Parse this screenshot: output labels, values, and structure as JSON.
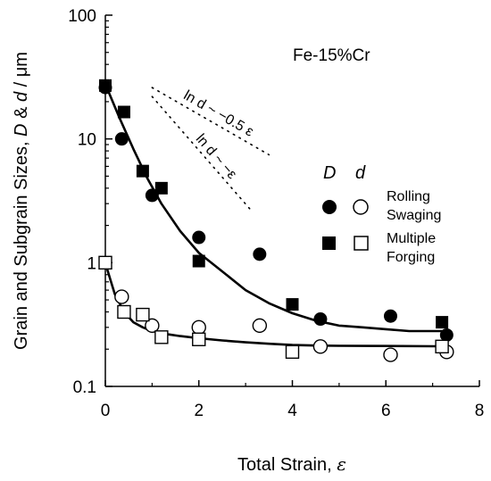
{
  "chart_data": {
    "type": "scatter",
    "yscale": "log",
    "xlim": [
      0,
      8
    ],
    "ylim": [
      0.1,
      100
    ],
    "x_ticks": [
      0,
      2,
      4,
      6,
      8
    ],
    "x_tick_labels": [
      "0",
      "2",
      "4",
      "6",
      "8"
    ],
    "y_ticks": [
      0.1,
      1,
      10,
      100
    ],
    "y_tick_labels": [
      "0.1",
      "1",
      "10",
      "100"
    ],
    "xlabel_prefix": "Total Strain, ",
    "xlabel_symbol": "ε",
    "ylabel_prefix": "Grain and Subgrain Sizes, ",
    "ylabel_D": "D",
    "ylabel_amp": " & ",
    "ylabel_d": "d",
    "ylabel_unit": " / μm",
    "annotation": "Fe-15%Cr",
    "grid": false,
    "legend": {
      "placement": "center-right",
      "head_D": "D",
      "head_d": "d",
      "entries": [
        {
          "line1": "Rolling",
          "line2": "Swaging",
          "marker": "circle"
        },
        {
          "line1": "Multiple",
          "line2": "Forging",
          "marker": "square"
        }
      ]
    },
    "slope_guides": [
      {
        "label": "ln d ~ −0.5 ε",
        "slope": -0.5,
        "x_start": 1.0,
        "x_end": 3.5,
        "y_start": 26
      },
      {
        "label": "ln d ~ −ε",
        "slope": -1,
        "x_start": 1.0,
        "x_end": 3.1,
        "y_start": 22
      }
    ],
    "series": [
      {
        "marker": "circle",
        "fill": "filled",
        "x": [
          0,
          0.35,
          1.0,
          2.0,
          3.3,
          4.6,
          6.1,
          7.3
        ],
        "y": [
          26,
          10,
          3.5,
          1.6,
          1.17,
          0.35,
          0.37,
          0.26
        ]
      },
      {
        "marker": "square",
        "fill": "filled",
        "x": [
          0,
          0.4,
          0.8,
          1.2,
          2.0,
          4.0,
          7.2
        ],
        "y": [
          27,
          16.5,
          5.5,
          4.0,
          1.03,
          0.46,
          0.33
        ]
      },
      {
        "marker": "circle",
        "fill": "open",
        "x": [
          0.35,
          1.0,
          2.0,
          3.3,
          4.6,
          6.1,
          7.3
        ],
        "y": [
          0.53,
          0.31,
          0.3,
          0.31,
          0.21,
          0.18,
          0.19
        ]
      },
      {
        "marker": "square",
        "fill": "open",
        "x": [
          0,
          0.4,
          0.8,
          1.2,
          2.0,
          4.0,
          7.2
        ],
        "y": [
          1.0,
          0.4,
          0.38,
          0.25,
          0.24,
          0.19,
          0.21
        ]
      }
    ],
    "fit_curves": [
      {
        "x": [
          0,
          0.3,
          0.6,
          0.9,
          1.2,
          1.6,
          2.0,
          2.5,
          3.0,
          3.5,
          4.0,
          4.5,
          5.0,
          5.5,
          6.0,
          6.5,
          7.0,
          7.2
        ],
        "y": [
          27.7,
          14.9,
          8.3,
          4.8,
          3.0,
          1.8,
          1.2,
          0.85,
          0.6,
          0.47,
          0.39,
          0.34,
          0.31,
          0.3,
          0.29,
          0.28,
          0.28,
          0.28
        ]
      },
      {
        "x": [
          0,
          0.2,
          0.4,
          0.6,
          0.8,
          1.0,
          1.3,
          1.6,
          2.0,
          2.5,
          3.0,
          3.5,
          4.0,
          4.5,
          5.0,
          6.0,
          7.0,
          7.2
        ],
        "y": [
          0.99,
          0.56,
          0.4,
          0.33,
          0.3,
          0.28,
          0.265,
          0.255,
          0.245,
          0.235,
          0.227,
          0.221,
          0.216,
          0.214,
          0.213,
          0.212,
          0.211,
          0.211
        ]
      }
    ]
  }
}
